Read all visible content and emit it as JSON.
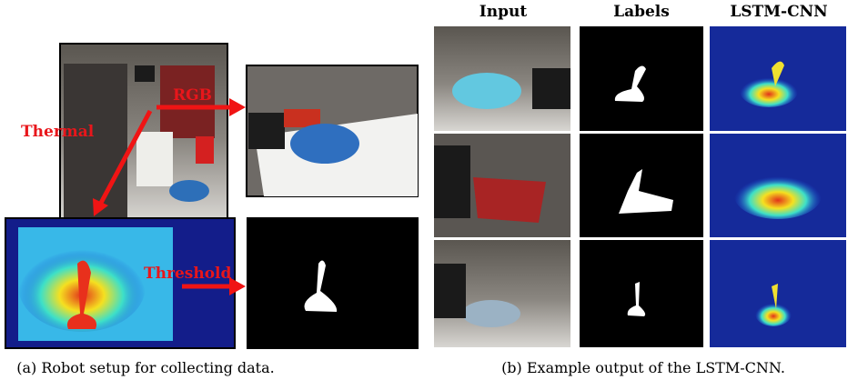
{
  "left_panel": {
    "labels": {
      "rgb": "RGB",
      "thermal": "Thermal",
      "threshold": "Threshold"
    },
    "caption": "(a) Robot setup for collecting data."
  },
  "right_panel": {
    "column_headers": [
      "Input",
      "Labels",
      "LSTM-CNN"
    ],
    "caption": "(b) Example output of the LSTM-CNN."
  }
}
